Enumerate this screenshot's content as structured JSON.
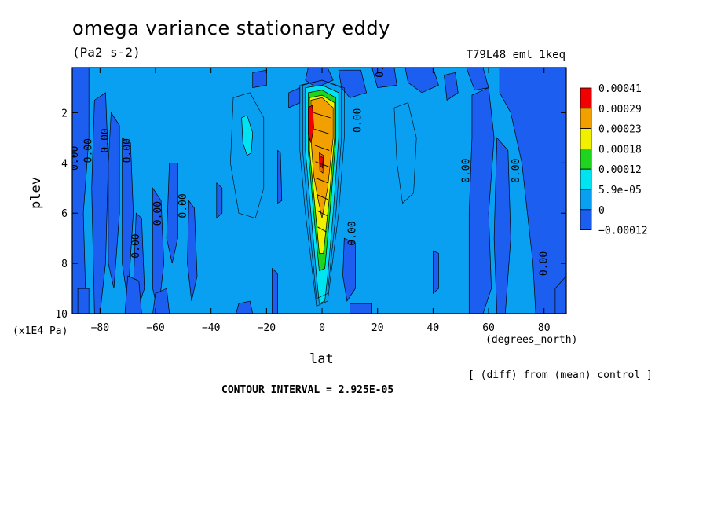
{
  "chart_data": {
    "type": "heatmap",
    "title": "omega variance stationary eddy",
    "units": "(Pa2 s-2)",
    "run_label": "T79L48_eml_1keq",
    "xlabel": "lat",
    "x_unit_label": "(degrees_north)",
    "ylabel": "plev",
    "y_unit_label": "(x1E4 Pa)",
    "footer_note": "[ (diff) from (mean) control ]",
    "contour_interval_text": "CONTOUR INTERVAL = 2.925E-05",
    "xlim": [
      -90,
      88
    ],
    "ylim": [
      10,
      0.2
    ],
    "x_ticks": [
      -80,
      -60,
      -40,
      -20,
      0,
      20,
      40,
      60,
      80
    ],
    "x_tick_labels": [
      "−80",
      "−60",
      "−40",
      "−20",
      "0",
      "20",
      "40",
      "60",
      "80"
    ],
    "y_ticks": [
      2,
      4,
      6,
      8,
      10
    ],
    "y_tick_labels": [
      "2",
      "4",
      "6",
      "8",
      "10"
    ],
    "levels": [
      -0.00012,
      0,
      5.9e-05,
      0.00012,
      0.00018,
      0.00023,
      0.00029,
      0.00041
    ],
    "colorbar_labels": [
      "0.00041",
      "0.00029",
      "0.00023",
      "0.00018",
      "0.00012",
      "5.9e-05",
      "0",
      "−0.00012"
    ],
    "colors": {
      "below_0": "#1c5ef0",
      "0_to_5.9e-05": "#0aa0f2",
      "5.9e-05_to_0.00012": "#00e4f2",
      "0.00012_to_0.00018": "#1ed41e",
      "0.00018_to_0.00023": "#f0f000",
      "0.00023_to_0.00029": "#f2a000",
      "0.00029_to_0.00041": "#e87000",
      "above_0.00029": "#f00000"
    },
    "contour_labels": [
      "0.00",
      "0.00",
      "0.00",
      "0.00",
      "0.00",
      "0.00",
      "0.00",
      "0.00",
      "0.00",
      "0.00",
      "0.00",
      "0.00",
      "0.00"
    ]
  }
}
